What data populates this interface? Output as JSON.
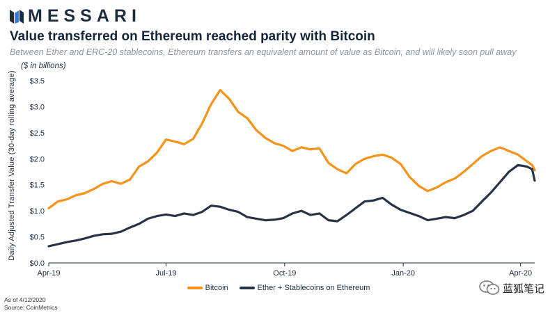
{
  "brand": {
    "name": "MESSARI",
    "logo_icon": "messari-logo-icon"
  },
  "header": {
    "title": "Value transferred on Ethereum reached parity with Bitcoin",
    "subtitle": "Between Ether and ERC-20 stablecoins, Ethereum transfers an equivalent amount of value as Bitcoin, and will likely soon pull away"
  },
  "footer": {
    "as_of": "As of 4/12/2020",
    "source": "Source: CoinMetrics"
  },
  "watermark": {
    "text": "蓝狐笔记",
    "icon": "wechat-icon"
  },
  "colors": {
    "bitcoin": "#F7931A",
    "ethereum": "#283445",
    "axis": "#1e2d3d",
    "grid": "#e6e6e6"
  },
  "chart_data": {
    "type": "line",
    "title": "Value transferred on Ethereum reached parity with Bitcoin",
    "units_note": "($ in billions)",
    "ylabel": "Daily Adjusted Transfer Value (30-day rolling average)",
    "xlabel": "",
    "ylim": [
      0,
      3.5
    ],
    "yticks": [
      "$0.0",
      "$0.5",
      "$1.0",
      "$1.5",
      "$2.0",
      "$2.5",
      "$3.0",
      "$3.5"
    ],
    "xlim": [
      "2019-04-01",
      "2020-04-12"
    ],
    "xticks": [
      {
        "date": "2019-04-01",
        "label": "Apr-19"
      },
      {
        "date": "2019-07-01",
        "label": "Jul-19"
      },
      {
        "date": "2019-10-01",
        "label": "Oct-19"
      },
      {
        "date": "2020-01-01",
        "label": "Jan-20"
      },
      {
        "date": "2020-04-01",
        "label": "Apr-20"
      }
    ],
    "grid": false,
    "legend_position": "bottom",
    "series": [
      {
        "name": "Bitcoin",
        "color": "#F7931A",
        "points": [
          [
            "2019-04-01",
            1.05
          ],
          [
            "2019-04-08",
            1.18
          ],
          [
            "2019-04-15",
            1.22
          ],
          [
            "2019-04-22",
            1.3
          ],
          [
            "2019-04-29",
            1.34
          ],
          [
            "2019-05-06",
            1.42
          ],
          [
            "2019-05-13",
            1.52
          ],
          [
            "2019-05-20",
            1.57
          ],
          [
            "2019-05-27",
            1.52
          ],
          [
            "2019-06-03",
            1.6
          ],
          [
            "2019-06-10",
            1.85
          ],
          [
            "2019-06-17",
            1.95
          ],
          [
            "2019-06-24",
            2.12
          ],
          [
            "2019-07-01",
            2.37
          ],
          [
            "2019-07-08",
            2.33
          ],
          [
            "2019-07-15",
            2.28
          ],
          [
            "2019-07-22",
            2.38
          ],
          [
            "2019-07-29",
            2.68
          ],
          [
            "2019-08-05",
            3.05
          ],
          [
            "2019-08-12",
            3.32
          ],
          [
            "2019-08-19",
            3.15
          ],
          [
            "2019-08-26",
            2.9
          ],
          [
            "2019-09-02",
            2.78
          ],
          [
            "2019-09-09",
            2.55
          ],
          [
            "2019-09-16",
            2.4
          ],
          [
            "2019-09-23",
            2.3
          ],
          [
            "2019-09-30",
            2.25
          ],
          [
            "2019-10-07",
            2.15
          ],
          [
            "2019-10-14",
            2.22
          ],
          [
            "2019-10-21",
            2.18
          ],
          [
            "2019-10-28",
            2.2
          ],
          [
            "2019-11-04",
            1.92
          ],
          [
            "2019-11-11",
            1.8
          ],
          [
            "2019-11-18",
            1.72
          ],
          [
            "2019-11-25",
            1.9
          ],
          [
            "2019-12-02",
            2.0
          ],
          [
            "2019-12-09",
            2.05
          ],
          [
            "2019-12-16",
            2.08
          ],
          [
            "2019-12-23",
            2.02
          ],
          [
            "2019-12-30",
            1.9
          ],
          [
            "2020-01-06",
            1.65
          ],
          [
            "2020-01-13",
            1.48
          ],
          [
            "2020-01-20",
            1.38
          ],
          [
            "2020-01-27",
            1.45
          ],
          [
            "2020-02-03",
            1.55
          ],
          [
            "2020-02-10",
            1.62
          ],
          [
            "2020-02-17",
            1.75
          ],
          [
            "2020-02-24",
            1.9
          ],
          [
            "2020-03-02",
            2.05
          ],
          [
            "2020-03-09",
            2.15
          ],
          [
            "2020-03-16",
            2.22
          ],
          [
            "2020-03-23",
            2.15
          ],
          [
            "2020-03-30",
            2.08
          ],
          [
            "2020-04-06",
            1.95
          ],
          [
            "2020-04-10",
            1.88
          ],
          [
            "2020-04-12",
            1.78
          ]
        ]
      },
      {
        "name": "Ether + Stablecoins on Ethereum",
        "color": "#283445",
        "points": [
          [
            "2019-04-01",
            0.32
          ],
          [
            "2019-04-08",
            0.36
          ],
          [
            "2019-04-15",
            0.4
          ],
          [
            "2019-04-22",
            0.43
          ],
          [
            "2019-04-29",
            0.47
          ],
          [
            "2019-05-06",
            0.52
          ],
          [
            "2019-05-13",
            0.55
          ],
          [
            "2019-05-20",
            0.56
          ],
          [
            "2019-05-27",
            0.6
          ],
          [
            "2019-06-03",
            0.68
          ],
          [
            "2019-06-10",
            0.75
          ],
          [
            "2019-06-17",
            0.85
          ],
          [
            "2019-06-24",
            0.9
          ],
          [
            "2019-07-01",
            0.93
          ],
          [
            "2019-07-08",
            0.9
          ],
          [
            "2019-07-15",
            0.95
          ],
          [
            "2019-07-22",
            0.92
          ],
          [
            "2019-07-29",
            0.98
          ],
          [
            "2019-08-05",
            1.1
          ],
          [
            "2019-08-12",
            1.08
          ],
          [
            "2019-08-19",
            1.02
          ],
          [
            "2019-08-26",
            0.98
          ],
          [
            "2019-09-02",
            0.88
          ],
          [
            "2019-09-09",
            0.85
          ],
          [
            "2019-09-16",
            0.82
          ],
          [
            "2019-09-23",
            0.83
          ],
          [
            "2019-09-30",
            0.86
          ],
          [
            "2019-10-07",
            0.95
          ],
          [
            "2019-10-14",
            1.0
          ],
          [
            "2019-10-21",
            0.92
          ],
          [
            "2019-10-28",
            0.95
          ],
          [
            "2019-11-04",
            0.82
          ],
          [
            "2019-11-11",
            0.8
          ],
          [
            "2019-11-18",
            0.92
          ],
          [
            "2019-11-25",
            1.05
          ],
          [
            "2019-12-02",
            1.18
          ],
          [
            "2019-12-09",
            1.2
          ],
          [
            "2019-12-16",
            1.25
          ],
          [
            "2019-12-23",
            1.12
          ],
          [
            "2019-12-30",
            1.02
          ],
          [
            "2020-01-06",
            0.96
          ],
          [
            "2020-01-13",
            0.9
          ],
          [
            "2020-01-20",
            0.82
          ],
          [
            "2020-01-27",
            0.85
          ],
          [
            "2020-02-03",
            0.88
          ],
          [
            "2020-02-10",
            0.86
          ],
          [
            "2020-02-17",
            0.92
          ],
          [
            "2020-02-24",
            1.0
          ],
          [
            "2020-03-02",
            1.18
          ],
          [
            "2020-03-09",
            1.35
          ],
          [
            "2020-03-16",
            1.55
          ],
          [
            "2020-03-23",
            1.75
          ],
          [
            "2020-03-30",
            1.88
          ],
          [
            "2020-04-06",
            1.85
          ],
          [
            "2020-04-10",
            1.8
          ],
          [
            "2020-04-12",
            1.58
          ]
        ]
      }
    ]
  }
}
